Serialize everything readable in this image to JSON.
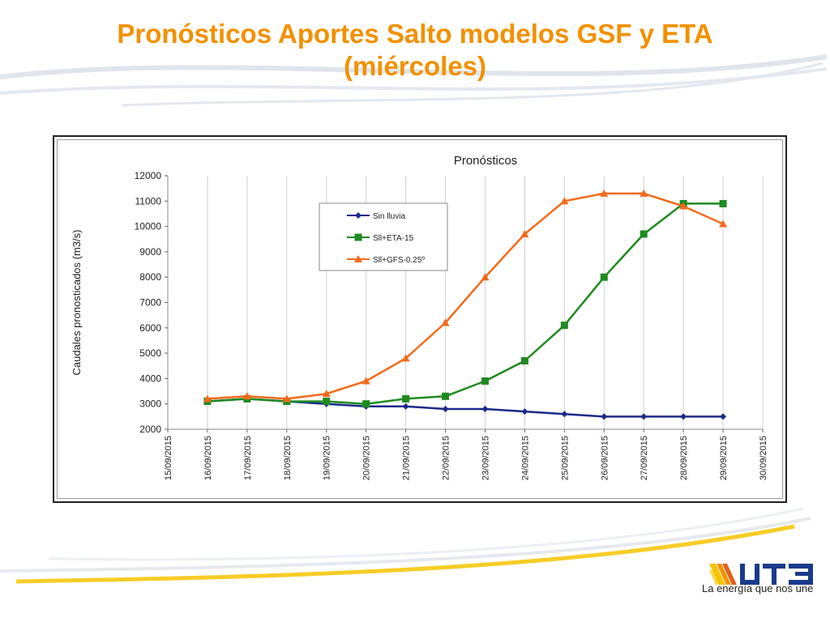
{
  "slide": {
    "title_line1": "Pronósticos Aportes Salto modelos GSF y ETA",
    "title_line2": "(miércoles)"
  },
  "brand": {
    "name": "UTE",
    "tagline": "La energía que nos une",
    "colors": {
      "orange": "#f29100",
      "blue": "#1b3a8c",
      "yellow": "#f5c400"
    }
  },
  "chart_data": {
    "type": "line",
    "title": "Pronósticos",
    "xlabel": "",
    "ylabel": "Caudales pronosticados (m3/s)",
    "x_ticks": [
      "15/09/2015",
      "16/09/2015",
      "17/09/2015",
      "18/09/2015",
      "19/09/2015",
      "20/09/2015",
      "21/09/2015",
      "22/09/2015",
      "23/09/2015",
      "24/09/2015",
      "25/09/2015",
      "26/09/2015",
      "27/09/2015",
      "28/09/2015",
      "29/09/2015",
      "30/09/2015"
    ],
    "x": [
      "16/09/2015",
      "17/09/2015",
      "18/09/2015",
      "19/09/2015",
      "20/09/2015",
      "21/09/2015",
      "22/09/2015",
      "23/09/2015",
      "24/09/2015",
      "25/09/2015",
      "26/09/2015",
      "27/09/2015",
      "28/09/2015",
      "29/09/2015"
    ],
    "ylim": [
      2000,
      12000
    ],
    "y_ticks": [
      2000,
      3000,
      4000,
      5000,
      6000,
      7000,
      8000,
      9000,
      10000,
      11000,
      12000
    ],
    "grid": "vertical",
    "legend_position": "top-left",
    "series": [
      {
        "name": "Sin lluvia",
        "color": "#1b2a8a",
        "marker": "diamond",
        "values": [
          3100,
          3200,
          3100,
          3000,
          2900,
          2900,
          2800,
          2800,
          2700,
          2600,
          2500,
          2500,
          2500,
          2500
        ]
      },
      {
        "name": "Sll+ETA-15",
        "color": "#1f8a1f",
        "marker": "square",
        "values": [
          3100,
          3200,
          3100,
          3100,
          3000,
          3200,
          3300,
          3900,
          4700,
          6100,
          8000,
          9700,
          10900,
          10900
        ]
      },
      {
        "name": "Sll+GFS-0.25º",
        "color": "#f26a1b",
        "marker": "triangle",
        "values": [
          3200,
          3300,
          3200,
          3400,
          3900,
          4800,
          6200,
          8000,
          9700,
          11000,
          11300,
          11300,
          10800,
          10100
        ]
      }
    ]
  }
}
